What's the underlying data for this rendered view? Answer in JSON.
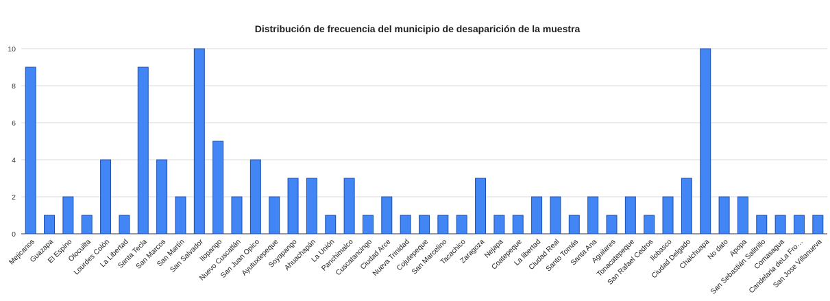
{
  "chart_data": {
    "type": "bar",
    "title": "Distribución de frecuencia del municipio de desaparición de la muestra",
    "xlabel": "",
    "ylabel": "",
    "ylim": [
      0,
      10
    ],
    "yticks": [
      0,
      2,
      4,
      6,
      8,
      10
    ],
    "grid": true,
    "legend": "none",
    "colors": {
      "bar": "#4285f4",
      "bar_edge": "#1a4fb0",
      "grid": "#d9d9d9"
    },
    "categories": [
      "Mejicanos",
      "Guazapa",
      "El Espino",
      "Olocuilta",
      "Lourdes Colón",
      "La Libertad",
      "Santa Tecla",
      "San Marcos",
      "San Martín",
      "San Salvador",
      "Ilopango",
      "Nuevo Cuscatlán",
      "San Juan Opico",
      "Ayutuxtepeque",
      "Soyapango",
      "Ahuachapán",
      "La Unión",
      "Panchimalco",
      "Cuscatancingo",
      "Ciudad Arce",
      "Nueva Trinidad",
      "Cojutepeque",
      "San Marcelino",
      "Tacachico",
      "Zaragoza",
      "Nejapa",
      "Coatepeque",
      "La libertad",
      "Ciudad Real",
      "Santo Tomás",
      "Santa Ana",
      "Aguilares",
      "Tonacatepeque",
      "San Rafael Cedros",
      "Ilobasco",
      "Ciudad Delgado",
      "Chalchuapa",
      "No dato",
      "Apopa",
      "San Sebastián Salitrillo",
      "Comasagua",
      "Candelaria deLa Fro…",
      "San Jose Villanueva"
    ],
    "values": [
      9,
      1,
      2,
      1,
      4,
      1,
      9,
      4,
      2,
      10,
      5,
      2,
      4,
      2,
      3,
      3,
      1,
      3,
      1,
      2,
      1,
      1,
      1,
      1,
      3,
      1,
      1,
      2,
      2,
      1,
      2,
      1,
      2,
      1,
      2,
      3,
      10,
      2,
      2,
      1,
      1,
      1,
      1
    ]
  }
}
